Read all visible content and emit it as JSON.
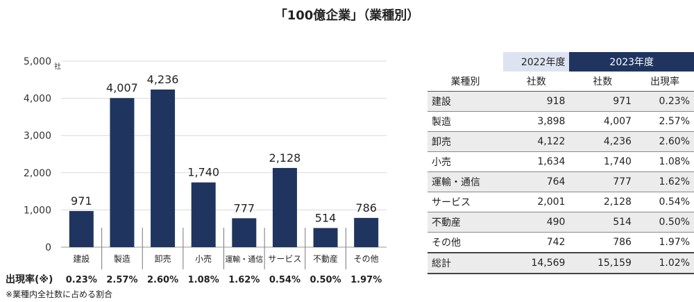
{
  "title": "「100億企業」（業種別）",
  "chart_data": {
    "type": "bar",
    "categories": [
      "建設",
      "製造",
      "卸売",
      "小売",
      "運輸・通信",
      "サービス",
      "不動産",
      "その他"
    ],
    "values": [
      971,
      4007,
      4236,
      1740,
      777,
      2128,
      514,
      786
    ],
    "value_labels": [
      "971",
      "4,007",
      "4,236",
      "1,740",
      "777",
      "2,128",
      "514",
      "786"
    ],
    "ylim": [
      0,
      5000
    ],
    "yticks": [
      "0",
      "1,000",
      "2,000",
      "3,000",
      "4,000",
      "5,000"
    ],
    "ytick_values": [
      0,
      1000,
      2000,
      3000,
      4000,
      5000
    ],
    "y_unit": "社",
    "grid": true,
    "bar_color": "#1f3560",
    "rate_label": "出現率(※)",
    "rates": [
      "0.23%",
      "2.57%",
      "2.60%",
      "1.08%",
      "1.62%",
      "0.54%",
      "0.50%",
      "1.97%"
    ]
  },
  "footnote": "※業種内全社数に占める割合",
  "table": {
    "year_2022": "2022年度",
    "year_2023": "2023年度",
    "headers": [
      "業種別",
      "社数",
      "社数",
      "出現率"
    ],
    "rows": [
      [
        "建設",
        "918",
        "971",
        "0.23%"
      ],
      [
        "製造",
        "3,898",
        "4,007",
        "2.57%"
      ],
      [
        "卸売",
        "4,122",
        "4,236",
        "2.60%"
      ],
      [
        "小売",
        "1,634",
        "1,740",
        "1.08%"
      ],
      [
        "運輸・通信",
        "764",
        "777",
        "1.62%"
      ],
      [
        "サービス",
        "2,001",
        "2,128",
        "0.54%"
      ],
      [
        "不動産",
        "490",
        "514",
        "0.50%"
      ],
      [
        "その他",
        "742",
        "786",
        "1.97%"
      ]
    ],
    "total": [
      "総計",
      "14,569",
      "15,159",
      "1.02%"
    ],
    "header_dark": "#1f3560",
    "header_light": "#dde3f0"
  }
}
